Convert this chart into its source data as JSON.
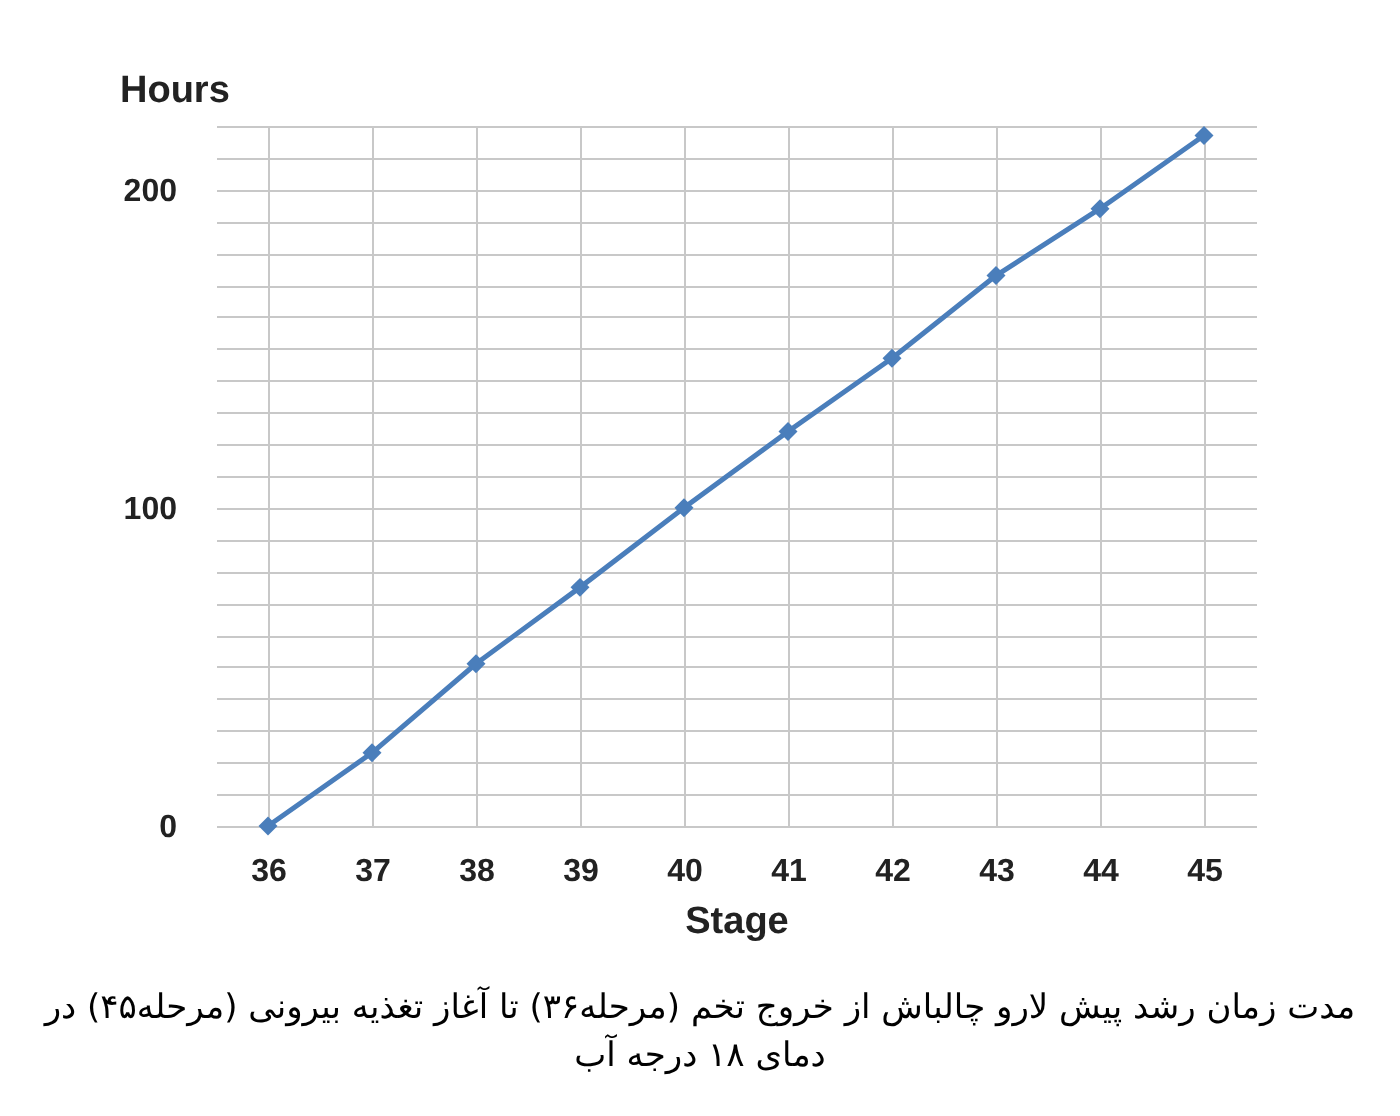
{
  "chart_data": {
    "type": "line",
    "xlabel": "Stage",
    "ylabel": "Hours",
    "categories": [
      "36",
      "37",
      "38",
      "39",
      "40",
      "41",
      "42",
      "43",
      "44",
      "45"
    ],
    "series": [
      {
        "color": "#4a7ebb",
        "values": [
          0,
          23,
          51,
          75,
          100,
          124,
          147,
          173,
          194,
          217
        ]
      }
    ],
    "ylim": [
      0,
      220
    ],
    "yticks": [
      0,
      {
        "value": 10,
        "label": null
      },
      {
        "value": 20,
        "label": null
      },
      {
        "value": 30,
        "label": null
      },
      {
        "value": 40,
        "label": null
      },
      {
        "value": 50,
        "label": null
      },
      {
        "value": 60,
        "label": null
      },
      {
        "value": 70,
        "label": null
      },
      {
        "value": 80,
        "label": null
      },
      {
        "value": 90,
        "label": null
      },
      100,
      {
        "value": 110,
        "label": null
      },
      {
        "value": 120,
        "label": null
      },
      {
        "value": 130,
        "label": null
      },
      {
        "value": 140,
        "label": null
      },
      {
        "value": 150,
        "label": null
      },
      {
        "value": 160,
        "label": null
      },
      {
        "value": 170,
        "label": null
      },
      {
        "value": 180,
        "label": null
      },
      {
        "value": 190,
        "label": null
      },
      200,
      {
        "value": 210,
        "label": null
      },
      {
        "value": 220,
        "label": null
      }
    ],
    "grid": true,
    "marker": "diamond",
    "line_style": "solid",
    "legend": false,
    "annotations": [
      "مدت زمان رشد پیش لارو چالباش از خروج تخم (مرحله۳۶) تا آغاز تغذیه بیرونی (مرحله۴۵) در دمای ۱۸ درجه آب"
    ]
  }
}
